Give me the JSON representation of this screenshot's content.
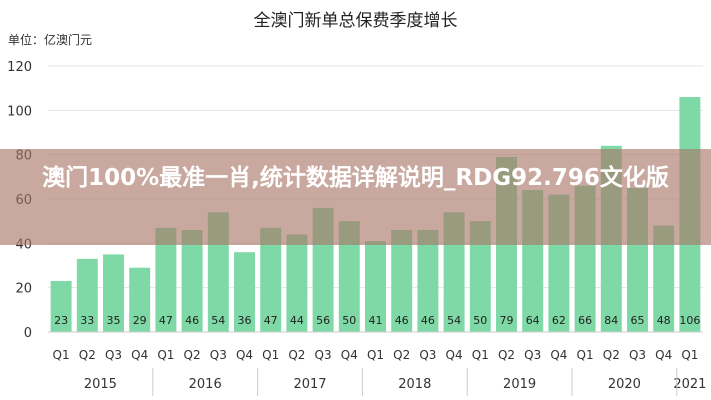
{
  "chart_data": {
    "type": "bar",
    "title": "全澳门新单总保费季度增长",
    "unit_label": "单位：亿澳门元",
    "ylim": [
      0,
      120
    ],
    "yticks": [
      0,
      20,
      40,
      60,
      80,
      100,
      120
    ],
    "grid": true,
    "bar_color": "#7ed9a6",
    "categories": [
      "Q1",
      "Q2",
      "Q3",
      "Q4",
      "Q1",
      "Q2",
      "Q3",
      "Q4",
      "Q1",
      "Q2",
      "Q3",
      "Q4",
      "Q1",
      "Q2",
      "Q3",
      "Q4",
      "Q1",
      "Q2",
      "Q3",
      "Q4",
      "Q1",
      "Q2",
      "Q3",
      "Q4",
      "Q1"
    ],
    "values": [
      23,
      33,
      35,
      29,
      47,
      46,
      54,
      36,
      47,
      44,
      56,
      50,
      41,
      46,
      46,
      54,
      50,
      79,
      64,
      62,
      66,
      84,
      65,
      48,
      106
    ],
    "years": [
      {
        "label": "2015",
        "start": 0,
        "end": 3
      },
      {
        "label": "2016",
        "start": 4,
        "end": 7
      },
      {
        "label": "2017",
        "start": 8,
        "end": 11
      },
      {
        "label": "2018",
        "start": 12,
        "end": 15
      },
      {
        "label": "2019",
        "start": 16,
        "end": 19
      },
      {
        "label": "2020",
        "start": 20,
        "end": 23
      },
      {
        "label": "2021",
        "start": 24,
        "end": 24
      }
    ]
  },
  "overlay": {
    "text": "澳门100%最准一肖,统计数据详解说明_RDG92.796文化版"
  }
}
